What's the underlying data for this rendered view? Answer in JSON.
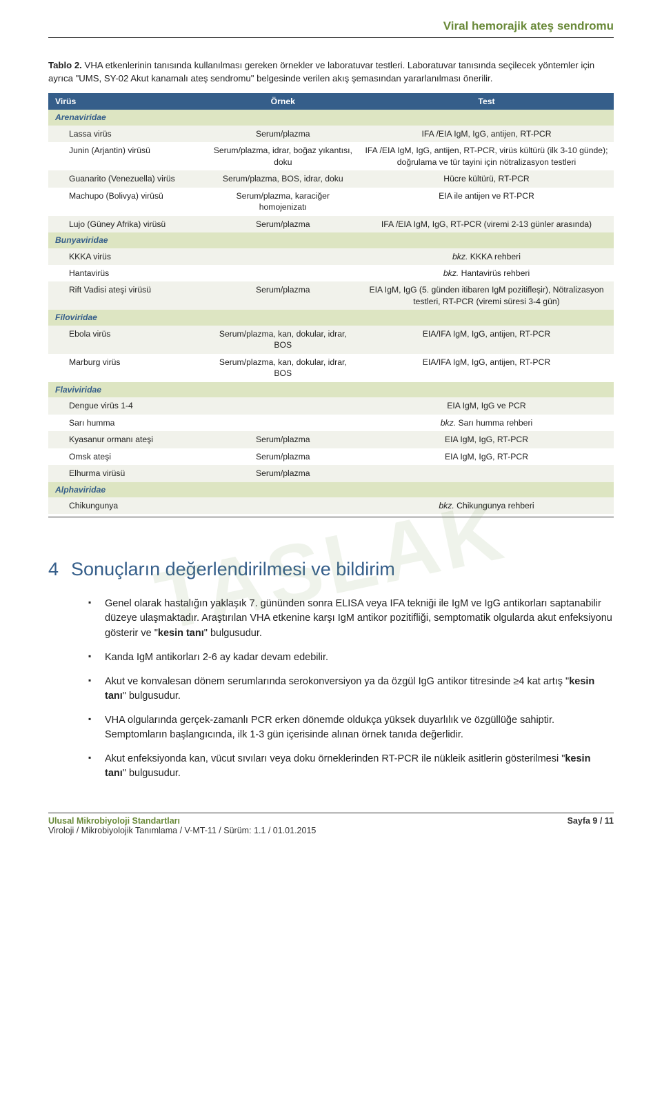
{
  "header_title": "Viral hemorajik ateş sendromu",
  "caption_bold": "Tablo 2.",
  "caption_text": " VHA etkenlerinin tanısında kullanılması gereken örnekler ve laboratuvar testleri. Laboratuvar tanısında seçilecek yöntemler için ayrıca \"UMS, SY-02 Akut kanamalı ateş sendromu\" belgesinde verilen akış şemasından yararlanılması önerilir.",
  "table": {
    "head": {
      "c1": "Virüs",
      "c2": "Örnek",
      "c3": "Test"
    },
    "header_bg": "#355e8a",
    "header_fg": "#ffffff",
    "family_bg": "#dde5c2",
    "family_fg": "#355e8a",
    "band_bg": "#f1f2eb",
    "rows": [
      {
        "type": "family",
        "label": "Arenaviridae"
      },
      {
        "type": "data",
        "band": true,
        "virus": "Lassa virüs",
        "sample": "Serum/plazma",
        "test": "IFA /EIA IgM, IgG, antijen, RT-PCR"
      },
      {
        "type": "data",
        "band": false,
        "virus": "Junin (Arjantin) virüsü",
        "sample": "Serum/plazma, idrar, boğaz yıkantısı, doku",
        "test": "IFA /EIA IgM, IgG, antijen, RT-PCR, virüs kültürü (ilk 3-10 günde); doğrulama ve tür tayini için nötralizasyon testleri"
      },
      {
        "type": "data",
        "band": true,
        "virus": "Guanarito (Venezuella) virüs",
        "sample": "Serum/plazma, BOS, idrar, doku",
        "test": "Hücre kültürü, RT-PCR"
      },
      {
        "type": "data",
        "band": false,
        "virus": "Machupo (Bolivya) virüsü",
        "sample": "Serum/plazma, karaciğer homojenizatı",
        "test": "EIA ile antijen ve RT-PCR"
      },
      {
        "type": "data",
        "band": true,
        "virus": "Lujo (Güney Afrika) virüsü",
        "sample": "Serum/plazma",
        "test": "IFA /EIA IgM, IgG, RT-PCR (viremi 2-13 günler arasında)"
      },
      {
        "type": "family",
        "label": "Bunyaviridae"
      },
      {
        "type": "data",
        "band": true,
        "virus": "KKKA virüs",
        "sample": "",
        "test_italic_prefix": "bkz.",
        "test_rest": " KKKA rehberi"
      },
      {
        "type": "data",
        "band": false,
        "virus": "Hantavirüs",
        "sample": "",
        "test_italic_prefix": "bkz.",
        "test_rest": " Hantavirüs rehberi"
      },
      {
        "type": "data",
        "band": true,
        "virus": "Rift Vadisi ateşi virüsü",
        "sample": "Serum/plazma",
        "test": "EIA IgM, IgG (5. günden itibaren IgM pozitifleşir), Nötralizasyon testleri, RT-PCR (viremi süresi 3-4 gün)"
      },
      {
        "type": "family",
        "label": "Filoviridae"
      },
      {
        "type": "data",
        "band": true,
        "virus": "Ebola virüs",
        "sample": "Serum/plazma, kan, dokular, idrar, BOS",
        "test": "EIA/IFA IgM, IgG, antijen, RT-PCR"
      },
      {
        "type": "data",
        "band": false,
        "virus": "Marburg virüs",
        "sample": "Serum/plazma, kan, dokular, idrar, BOS",
        "test": "EIA/IFA IgM, IgG, antijen, RT-PCR"
      },
      {
        "type": "family",
        "label": "Flaviviridae"
      },
      {
        "type": "data",
        "band": true,
        "virus": "Dengue virüs 1-4",
        "sample": "",
        "test": "EIA IgM, IgG ve PCR"
      },
      {
        "type": "data",
        "band": false,
        "virus": "Sarı humma",
        "sample": "",
        "test_italic_prefix": "bkz.",
        "test_rest": " Sarı humma rehberi"
      },
      {
        "type": "data",
        "band": true,
        "virus": "Kyasanur ormanı ateşi",
        "sample": "Serum/plazma",
        "test": "EIA IgM, IgG, RT-PCR"
      },
      {
        "type": "data",
        "band": false,
        "virus": "Omsk ateşi",
        "sample": "Serum/plazma",
        "test": "EIA IgM, IgG, RT-PCR"
      },
      {
        "type": "data",
        "band": true,
        "virus": "Elhurma virüsü",
        "sample": "Serum/plazma",
        "test": ""
      },
      {
        "type": "family",
        "label": "Alphaviridae"
      },
      {
        "type": "data",
        "band": true,
        "virus": "Chikungunya",
        "sample": "",
        "test_italic_prefix": "bkz.",
        "test_rest": " Chikungunya rehberi"
      }
    ]
  },
  "watermark": "TASLAK",
  "section": {
    "num": "4",
    "title": "Sonuçların değerlendirilmesi ve bildirim",
    "bullets": [
      "Genel olarak hastalığın yaklaşık 7. gününden sonra ELISA veya IFA tekniği ile IgM ve IgG antikorları saptanabilir düzeye ulaşmaktadır. Araştırılan VHA etkenine karşı IgM antikor pozitifliği, semptomatik olgularda akut enfeksiyonu gösterir ve \"<b>kesin tanı</b>\" bulgusudur.",
      "Kanda IgM antikorları 2-6 ay kadar devam edebilir.",
      "Akut ve konvalesan dönem serumlarında serokonversiyon ya da özgül IgG antikor titresinde ≥4 kat artış \"<b>kesin tanı</b>\" bulgusudur.",
      "VHA olgularında gerçek-zamanlı PCR erken dönemde oldukça yüksek duyarlılık ve özgüllüğe sahiptir. Semptomların başlangıcında, ilk 1-3 gün içerisinde alınan örnek tanıda değerlidir.",
      "Akut enfeksiyonda kan, vücut sıvıları veya doku örneklerinden RT-PCR ile nükleik asitlerin gösterilmesi \"<b>kesin tanı</b>\" bulgusudur."
    ]
  },
  "footer": {
    "left_title": "Ulusal Mikrobiyoloji Standartları",
    "left_sub": "Viroloji / Mikrobiyolojik Tanımlama / V-MT-11 / Sürüm: 1.1 / 01.01.2015",
    "right": "Sayfa 9 / 11"
  }
}
